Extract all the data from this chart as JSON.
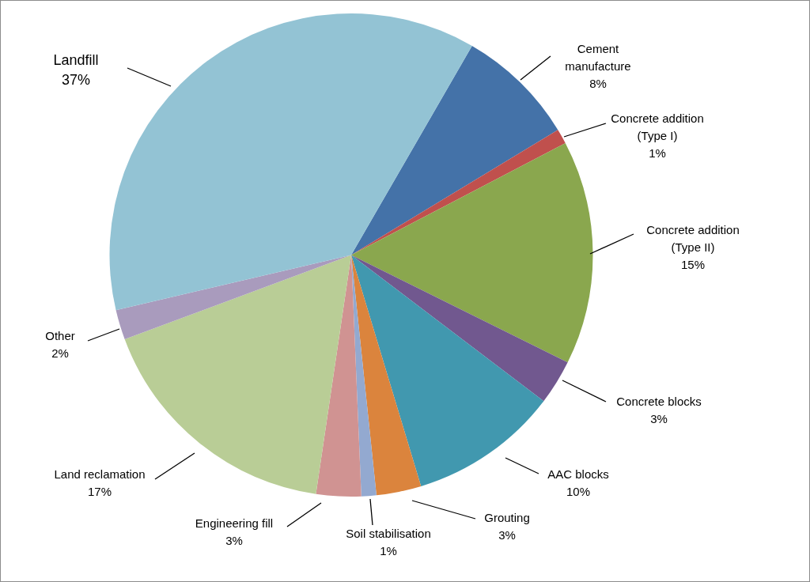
{
  "chart_data": {
    "type": "pie",
    "categories": [
      "Cement manufacture",
      "Concrete addition (Type I)",
      "Concrete addition (Type II)",
      "Concrete blocks",
      "AAC blocks",
      "Grouting",
      "Soil stabilisation",
      "Engineering fill",
      "Land reclamation",
      "Other",
      "Landfill"
    ],
    "values": [
      8,
      1,
      15,
      3,
      10,
      3,
      1,
      3,
      17,
      2,
      37
    ],
    "value_labels": [
      "8%",
      "1%",
      "15%",
      "3%",
      "10%",
      "3%",
      "1%",
      "3%",
      "17%",
      "2%",
      "37%"
    ],
    "colors": [
      "#4472a8",
      "#c0504d",
      "#8aa74e",
      "#71588f",
      "#4198af",
      "#db843d",
      "#93a9d0",
      "#d09392",
      "#b9cd96",
      "#a99bbd",
      "#93c3d4"
    ],
    "legend": false
  }
}
